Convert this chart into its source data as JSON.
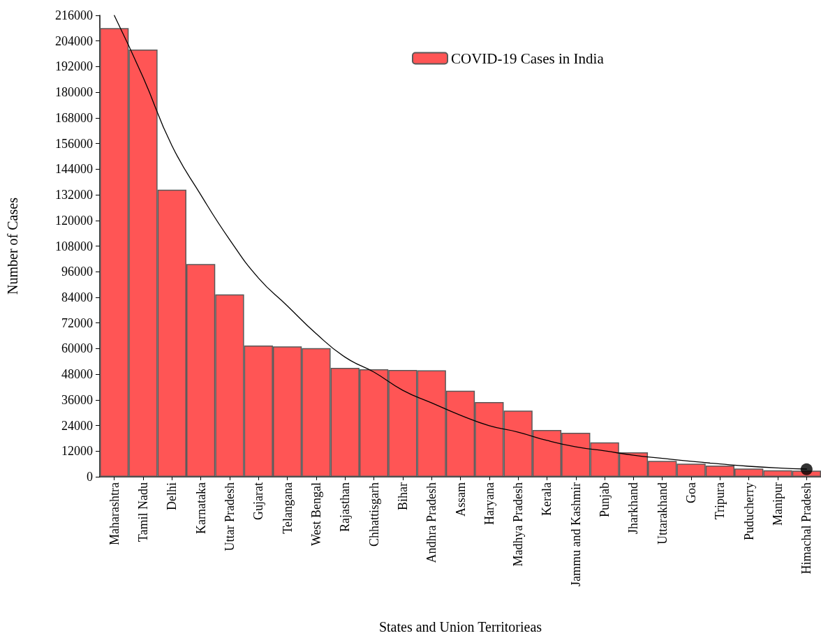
{
  "chart_data": {
    "type": "bar",
    "xlabel": "States and Union Territorieas",
    "ylabel": "Number of Cases",
    "categories": [
      "Maharashtra",
      "Tamil Nadu",
      "Delhi",
      "Karnataka",
      "Uttar Pradesh",
      "Gujarat",
      "Telangana",
      "West Bengal",
      "Rajasthan",
      "Chhattisgarh",
      "Bihar",
      "Andhra Pradesh",
      "Assam",
      "Haryana",
      "Madhya Pradesh",
      "Kerala",
      "Jammu and Kashmir",
      "Punjab",
      "Jharkhand",
      "Uttarakhand",
      "Goa",
      "Tripura",
      "Puducherry",
      "Manipur",
      "Himachal Pradesh"
    ],
    "series": [
      {
        "name": "COVID-19 Cases in India",
        "color": "#ff5555",
        "values": [
          210000,
          200000,
          134400,
          99600,
          85400,
          61400,
          61000,
          60200,
          51000,
          50300,
          50000,
          49800,
          40300,
          35000,
          31000,
          21900,
          20600,
          16100,
          11400,
          7400,
          6100,
          5200,
          3800,
          3000,
          2900
        ]
      },
      {
        "type": "line",
        "color": "#000000",
        "marker": "none",
        "line_style": "solid",
        "x": [
          "Maharashtra",
          "Tamil Nadu",
          "Delhi",
          "Karnataka",
          "Uttar Pradesh",
          "Gujarat",
          "Telangana",
          "West Bengal",
          "Rajasthan",
          "Chhattisgarh",
          "Bihar",
          "Andhra Pradesh",
          "Assam",
          "Haryana",
          "Madhya Pradesh",
          "Kerala",
          "Jammu and Kashmir",
          "Punjab",
          "Jharkhand",
          "Uttarakhand",
          "Goa",
          "Tripura",
          "Puducherry",
          "Manipur",
          "Himachal Pradesh"
        ],
        "values": [
          216000,
          187000,
          155000,
          132000,
          111000,
          93000,
          80000,
          67000,
          56000,
          49000,
          40500,
          34600,
          28800,
          23900,
          20900,
          17000,
          14000,
          12100,
          10100,
          8600,
          7200,
          6000,
          4900,
          4100,
          3600
        ]
      },
      {
        "type": "scatter",
        "color": "#000000",
        "marker": "circle",
        "x": [
          "Himachal Pradesh"
        ],
        "values": [
          3500
        ]
      }
    ],
    "ylim": [
      0,
      216000
    ],
    "yticks": [
      0,
      12000,
      24000,
      36000,
      48000,
      60000,
      72000,
      84000,
      96000,
      108000,
      120000,
      132000,
      144000,
      156000,
      168000,
      180000,
      192000,
      204000,
      216000
    ],
    "grid": false,
    "legend": "top right"
  }
}
